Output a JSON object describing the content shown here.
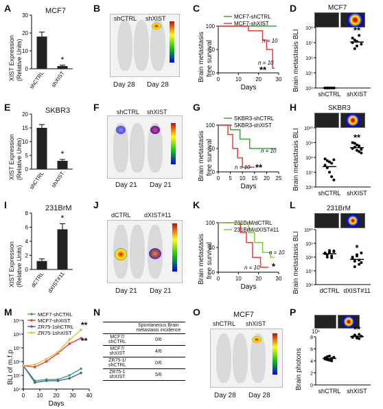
{
  "letters": {
    "A": "A",
    "B": "B",
    "C": "C",
    "D": "D",
    "E": "E",
    "F": "F",
    "G": "G",
    "H": "H",
    "I": "I",
    "J": "J",
    "K": "K",
    "L": "L",
    "M": "M",
    "N": "N",
    "O": "O",
    "P": "P"
  },
  "A": {
    "cell": "MCF7",
    "ylabel1": "XIST Expression",
    "ylabel2": "(Relative Units)",
    "ticks": [
      "0",
      "10",
      "20",
      "30"
    ],
    "cats": [
      "shCTRL",
      "shXIST"
    ],
    "sig": "*"
  },
  "B": {
    "l1": "shCTRL",
    "l2": "shXIST",
    "d1": "Day 28",
    "d2": "Day 28"
  },
  "C": {
    "legend": [
      "MCF7-shCTRL",
      "MCF7-shXIST"
    ],
    "ylabel1": "Brain metastasis",
    "ylabel2": "free survival",
    "xlabel": "Days",
    "yticks": [
      "0",
      "50",
      "100"
    ],
    "xticks": [
      "0",
      "10",
      "20",
      "30"
    ],
    "n1": "n = 10",
    "n2": "n = 10",
    "sig": "**"
  },
  "D": {
    "cell": "MCF7",
    "ylabel": "Brain metastasis BLI",
    "yticks": [
      "10⁴",
      "10⁵",
      "10⁶",
      "10⁷",
      "10⁸"
    ],
    "cats": [
      "shCTRL",
      "shXIST"
    ],
    "sig": "**"
  },
  "E": {
    "cell": "SKBR3",
    "ylabel1": "XIST Expression",
    "ylabel2": "(Relative Units)",
    "ticks": [
      "0",
      "5",
      "10",
      "15",
      "20"
    ],
    "cats": [
      "shCTRL",
      "shXIST"
    ],
    "sig": "*"
  },
  "F": {
    "l1": "shCTRL",
    "l2": "shXIST",
    "d1": "Day 21",
    "d2": "Day 21"
  },
  "G": {
    "legend": [
      "SKBR3-shCTRL",
      "SKBR3-shXIST"
    ],
    "ylabel1": "Brain metastasis",
    "ylabel2": "free survival",
    "xlabel": "Days",
    "yticks": [
      "0",
      "50",
      "100"
    ],
    "xticks": [
      "0",
      "5",
      "10",
      "15",
      "20",
      "25"
    ],
    "n1": "n = 10",
    "n2": "n = 10",
    "sig": "**"
  },
  "H": {
    "cell": "SKBR3",
    "ylabel": "Brain metastasis BLI",
    "yticks": [
      "10⁶",
      "10⁷",
      "10⁸",
      "10⁹",
      "10¹⁰"
    ],
    "cats": [
      "shCTRL",
      "shXIST"
    ],
    "sig": "**"
  },
  "I": {
    "cell": "231BrM",
    "ylabel1": "XIST Expression",
    "ylabel2": "(Relative Units)",
    "ticks": [
      "0",
      "2",
      "4",
      "6",
      "8"
    ],
    "cats": [
      "dCTRL",
      "dXIST#11"
    ],
    "sig": "*"
  },
  "J": {
    "l1": "dCTRL",
    "l2": "dXIST#11",
    "d1": "Day 21",
    "d2": "Day 21"
  },
  "K": {
    "legend": [
      "231BrM/dCTRL",
      "231BrM/dXIST#11"
    ],
    "ylabel1": "Brain metastasis",
    "ylabel2": "free survival",
    "xlabel": "Days",
    "yticks": [
      "0",
      "50",
      "100"
    ],
    "xticks": [
      "0",
      "10",
      "20",
      "30"
    ],
    "n1": "n = 10",
    "n2": "n = 10",
    "sig": "*"
  },
  "L": {
    "cell": "231BrM",
    "ylabel": "Brain metastasis BLI",
    "yticks": [
      "10⁶",
      "10⁷",
      "10⁸",
      "10⁹",
      "10¹⁰"
    ],
    "cats": [
      "dCTRL",
      "dXIST#11"
    ],
    "sig": "*"
  },
  "M": {
    "ylabel": "BLI of m.f.p",
    "xlabel": "Days",
    "legend": [
      "MCF7-shCTRL",
      "MCF7-shXIST",
      "ZR75-1shCTRL",
      "ZR75-1shXIST"
    ],
    "yticks": [
      "10⁴",
      "10⁵",
      "10⁶",
      "10⁷",
      "10⁸",
      "10⁹"
    ],
    "xticks": [
      "0",
      "10",
      "20",
      "30",
      "40"
    ],
    "sig1": "**",
    "sig2": "**"
  },
  "N": {
    "header": "Spontaneous Brain metastasis incidence",
    "rows": [
      [
        "MCF7/ shCTRL",
        "0/6"
      ],
      [
        "MCF7/ shXIST",
        "4/6"
      ],
      [
        "ZR75-1/ shCTRL",
        "0/6"
      ],
      [
        "ZR75-1 shXIST",
        "5/6"
      ]
    ]
  },
  "O": {
    "cell": "MCF7",
    "l1": "shCTRL",
    "l2": "shXIST",
    "d1": "Day 28",
    "d2": "Day 28"
  },
  "P": {
    "ylabel": "Brain photons",
    "mult": "10⁶",
    "yticks": [
      "0",
      "2",
      "4",
      "6",
      "8"
    ],
    "cats": [
      "shCTRL",
      "shXIST"
    ],
    "sig": "**"
  },
  "chart_data": [
    {
      "panel": "A",
      "type": "bar",
      "categories": [
        "shCTRL",
        "shXIST"
      ],
      "values": [
        18,
        1.5
      ],
      "errors": [
        2.5,
        0.5
      ],
      "ylim": [
        0,
        30
      ],
      "ylabel": "XIST Expression (Relative Units)",
      "title": "MCF7"
    },
    {
      "panel": "C",
      "type": "line",
      "xlabel": "Days",
      "ylabel": "Brain metastasis free survival",
      "xlim": [
        0,
        30
      ],
      "ylim": [
        0,
        100
      ],
      "series": [
        {
          "name": "MCF7-shCTRL",
          "color": "#33aa33",
          "x": [
            0,
            29
          ],
          "y": [
            100,
            100
          ]
        },
        {
          "name": "MCF7-shXIST",
          "color": "#e83a3a",
          "x": [
            0,
            15,
            15,
            22,
            22,
            24,
            24,
            27,
            27,
            28
          ],
          "y": [
            100,
            100,
            90,
            90,
            70,
            70,
            50,
            50,
            10,
            10
          ]
        }
      ]
    },
    {
      "panel": "D",
      "type": "scatter",
      "categories": [
        "shCTRL",
        "shXIST"
      ],
      "ylog": true,
      "ylim": [
        10000,
        100000000
      ],
      "values": [
        [
          10000,
          10000,
          10000,
          10000,
          10000,
          10000,
          10000,
          10000
        ],
        [
          10000000,
          15000000,
          6000000,
          30000000,
          8000000,
          20000000,
          4000000,
          12000000
        ]
      ]
    },
    {
      "panel": "E",
      "type": "bar",
      "categories": [
        "shCTRL",
        "shXIST"
      ],
      "values": [
        15,
        3
      ],
      "errors": [
        1.2,
        0.5
      ],
      "ylim": [
        0,
        20
      ],
      "ylabel": "XIST Expression (Relative Units)",
      "title": "SKBR3"
    },
    {
      "panel": "G",
      "type": "line",
      "xlabel": "Days",
      "ylabel": "Brain metastasis free survival",
      "xlim": [
        0,
        25
      ],
      "ylim": [
        0,
        100
      ],
      "series": [
        {
          "name": "SKBR3-shCTRL",
          "color": "#33aa33",
          "x": [
            0,
            5,
            5,
            9,
            9,
            13,
            13,
            24
          ],
          "y": [
            100,
            100,
            90,
            90,
            70,
            70,
            50,
            50
          ]
        },
        {
          "name": "SKBR3-shXIST",
          "color": "#e83a3a",
          "x": [
            0,
            4,
            4,
            6,
            6,
            8,
            8,
            10,
            10,
            15
          ],
          "y": [
            100,
            100,
            80,
            80,
            50,
            50,
            30,
            30,
            10,
            10
          ]
        }
      ]
    },
    {
      "panel": "H",
      "type": "scatter",
      "categories": [
        "shCTRL",
        "shXIST"
      ],
      "ylog": true,
      "ylim": [
        1000000,
        10000000000
      ],
      "values": [
        [
          30000000,
          60000000,
          10000000,
          40000000,
          3000000,
          80000000,
          20000000,
          50000000,
          5000000,
          70000000
        ],
        [
          400000000,
          900000000,
          300000000,
          600000000,
          200000000,
          1000000000,
          500000000,
          700000000,
          250000000,
          350000000
        ]
      ]
    },
    {
      "panel": "I",
      "type": "bar",
      "categories": [
        "dCTRL",
        "dXIST#11"
      ],
      "values": [
        1.2,
        5.7
      ],
      "errors": [
        0.3,
        0.8
      ],
      "ylim": [
        0,
        8
      ],
      "ylabel": "XIST Expression (Relative Units)",
      "title": "231BrM"
    },
    {
      "panel": "K",
      "type": "line",
      "xlabel": "Days",
      "ylabel": "Brain metastasis free survival",
      "xlim": [
        0,
        30
      ],
      "ylim": [
        0,
        100
      ],
      "series": [
        {
          "name": "231BrM/dCTRL",
          "color": "#e83a3a",
          "x": [
            0,
            11,
            11,
            14,
            14,
            17,
            17,
            21,
            21,
            25
          ],
          "y": [
            100,
            100,
            80,
            80,
            60,
            60,
            30,
            30,
            10,
            10
          ]
        },
        {
          "name": "231BrM/dXIST#11",
          "color": "#7ecb3f",
          "x": [
            0,
            15,
            15,
            18,
            18,
            22,
            22,
            26,
            26,
            28
          ],
          "y": [
            100,
            100,
            80,
            80,
            60,
            60,
            40,
            40,
            30,
            30
          ]
        }
      ]
    },
    {
      "panel": "L",
      "type": "scatter",
      "categories": [
        "dCTRL",
        "dXIST#11"
      ],
      "ylog": true,
      "ylim": [
        1000000,
        10000000000
      ],
      "values": [
        [
          200000000,
          150000000,
          300000000,
          120000000,
          250000000,
          180000000,
          100000000,
          220000000,
          90000000,
          280000000
        ],
        [
          100000000,
          50000000,
          150000000,
          30000000,
          200000000,
          80000000,
          20000000,
          120000000,
          60000000,
          40000000
        ]
      ]
    },
    {
      "panel": "M",
      "type": "line",
      "xlabel": "Days",
      "ylabel": "BLI of m.f.p",
      "ylog": true,
      "xlim": [
        0,
        40
      ],
      "ylim": [
        10000,
        1000000000
      ],
      "series": [
        {
          "name": "MCF7-shCTRL",
          "color": "#3aa655",
          "x": [
            0,
            7,
            14,
            21,
            28,
            35
          ],
          "y": [
            500000,
            40000,
            50000,
            50000,
            100000,
            300000
          ]
        },
        {
          "name": "MCF7-shXIST",
          "color": "#e83a3a",
          "x": [
            0,
            7,
            14,
            21,
            28,
            35
          ],
          "y": [
            500000,
            400000,
            1000000,
            4000000,
            20000000,
            50000000
          ]
        },
        {
          "name": "ZR75-1shCTRL",
          "color": "#3f5fbf",
          "x": [
            0,
            7,
            14,
            21,
            28,
            35
          ],
          "y": [
            500000,
            30000,
            40000,
            40000,
            60000,
            150000
          ]
        },
        {
          "name": "ZR75-1shXIST",
          "color": "#d9c43a",
          "x": [
            0,
            7,
            14,
            21,
            28,
            35
          ],
          "y": [
            500000,
            600000,
            1500000,
            5000000,
            40000000,
            200000000
          ]
        }
      ]
    },
    {
      "panel": "N",
      "type": "table",
      "columns": [
        "",
        "Spontaneous Brain metastasis incidence"
      ],
      "rows": [
        [
          "MCF7/ shCTRL",
          "0/6"
        ],
        [
          "MCF7/ shXIST",
          "4/6"
        ],
        [
          "ZR75-1/ shCTRL",
          "0/6"
        ],
        [
          "ZR75-1 shXIST",
          "5/6"
        ]
      ]
    },
    {
      "panel": "P",
      "type": "scatter",
      "categories": [
        "shCTRL",
        "shXIST"
      ],
      "ylim": [
        0,
        8
      ],
      "ylabel": "Brain photons",
      "values": [
        [
          4.5,
          4.2,
          4.8,
          4.0,
          4.6,
          4.3,
          4.7,
          4.1,
          4.4
        ],
        [
          8.0,
          8.2,
          7.8,
          8.4,
          8.1,
          7.9,
          8.3,
          8.0,
          7.7
        ]
      ]
    }
  ]
}
